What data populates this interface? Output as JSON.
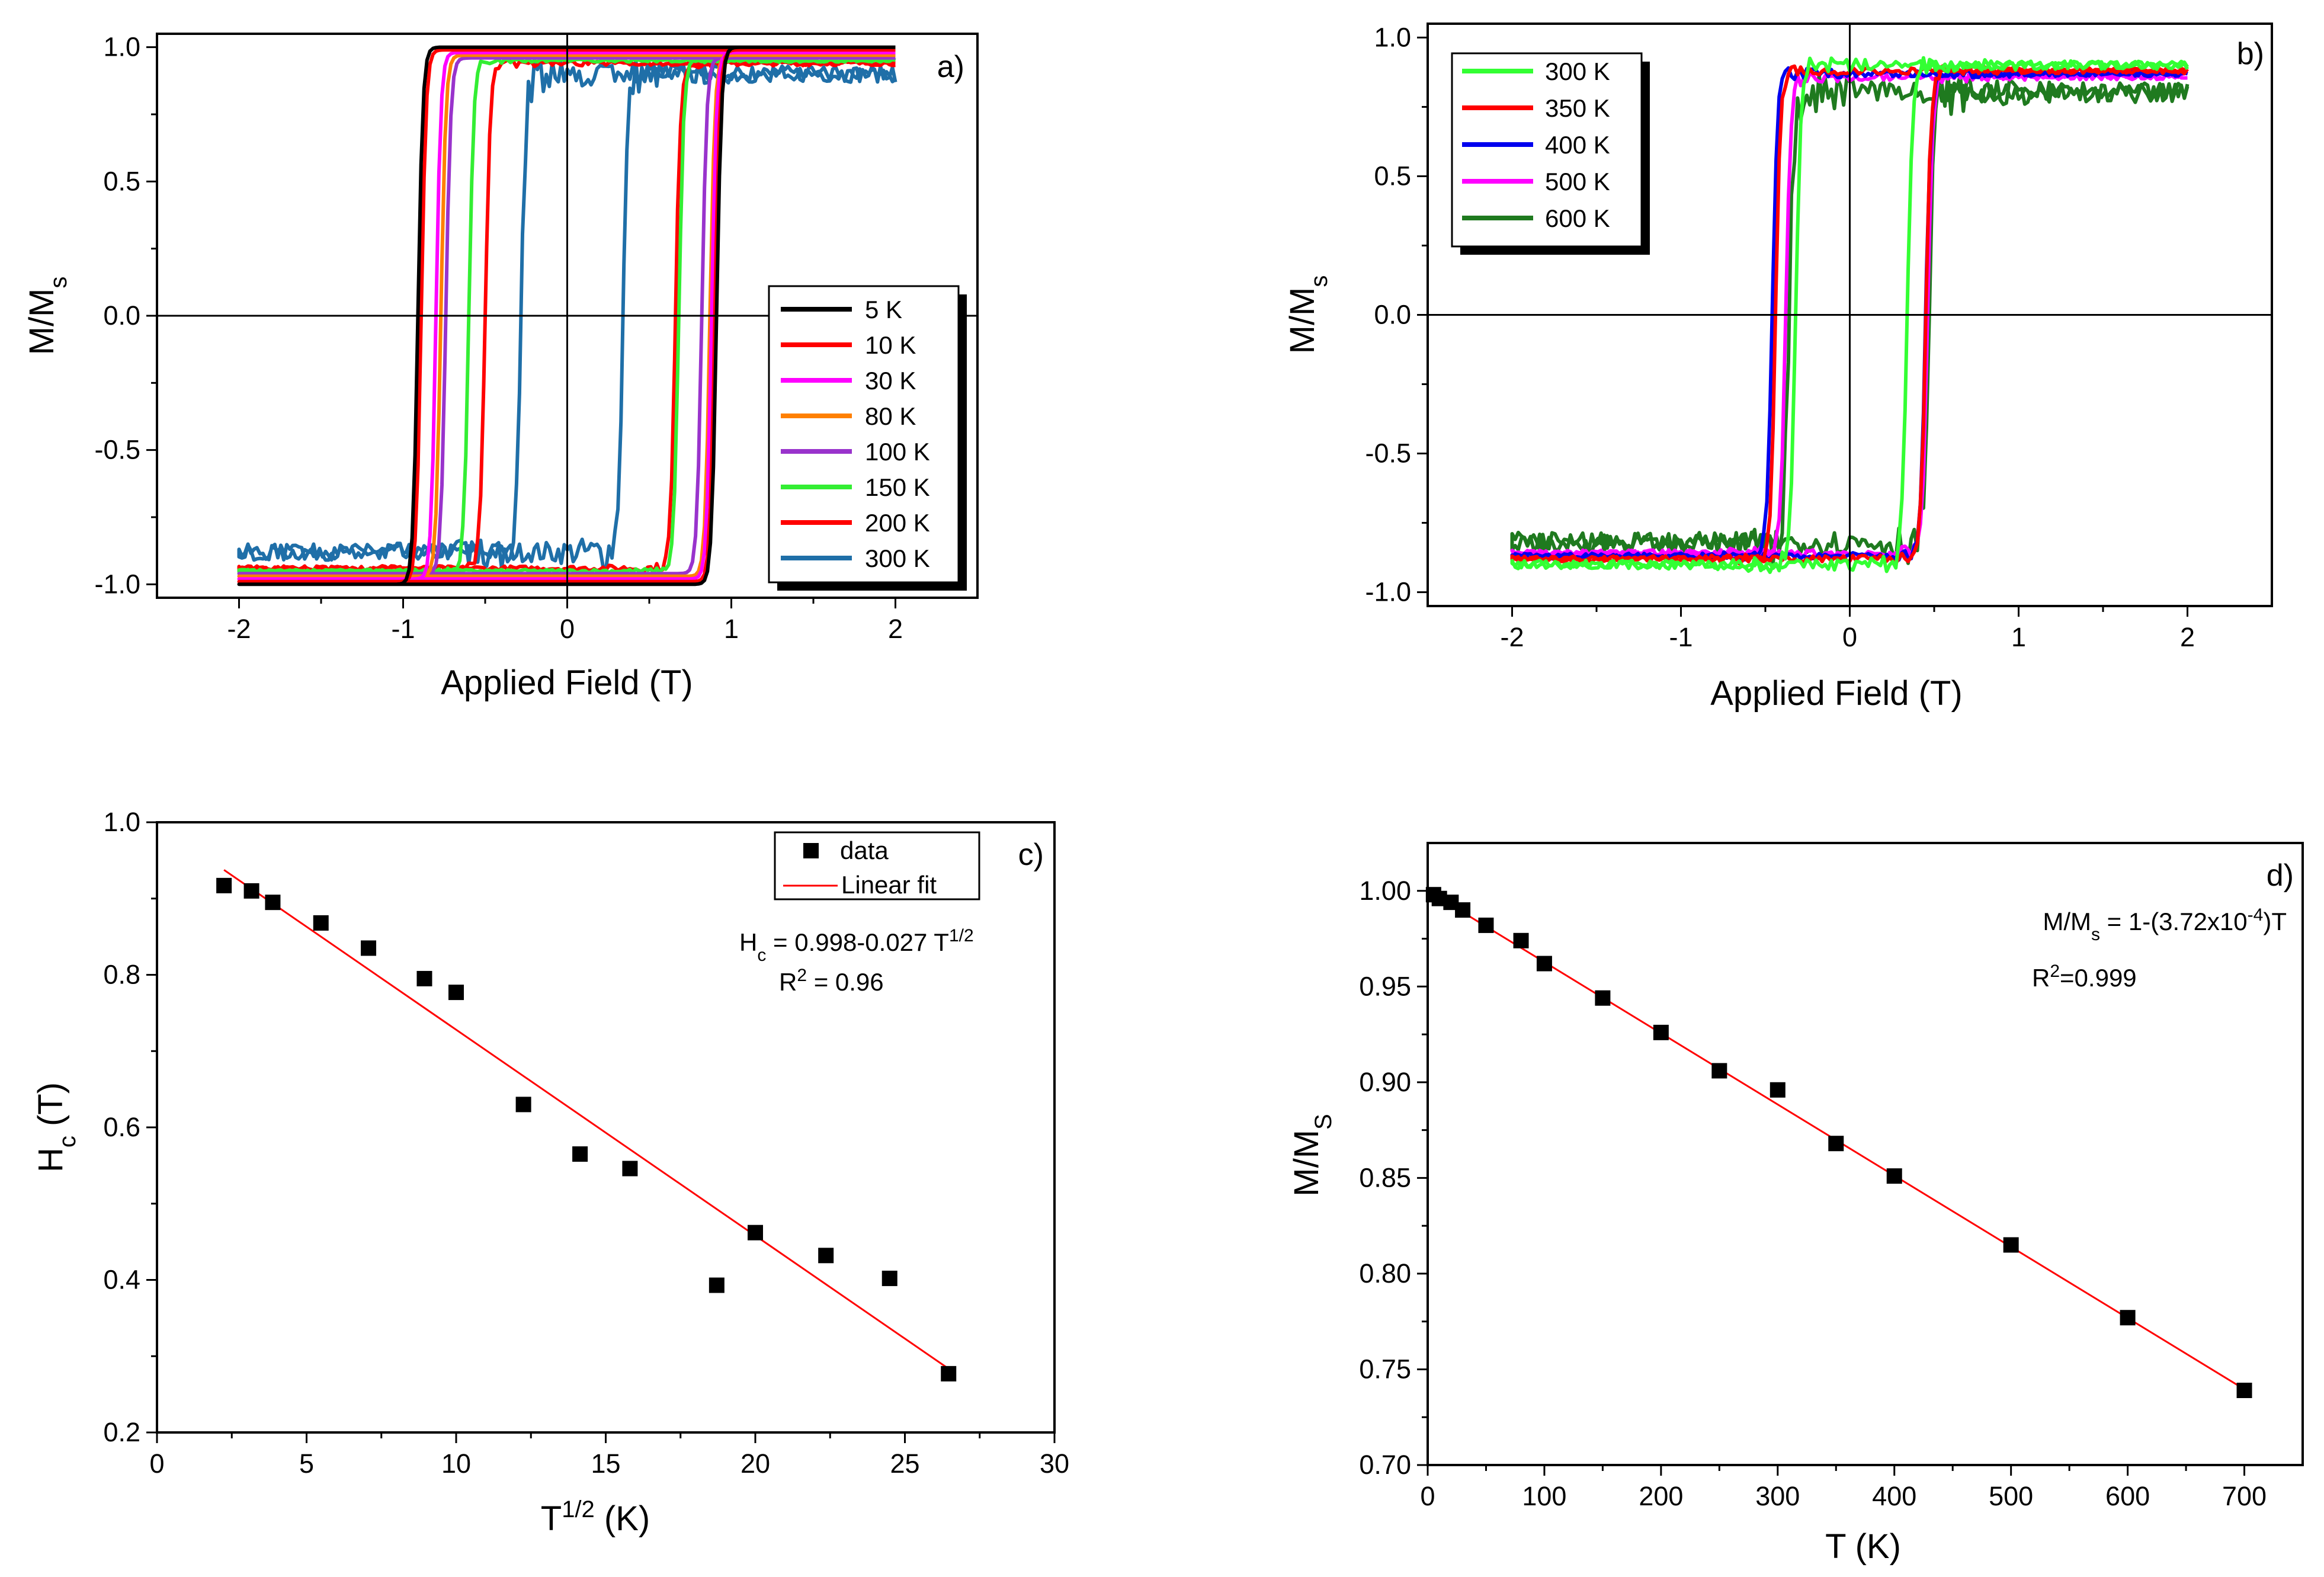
{
  "figure": "Four-panel magnetic characterization figure",
  "chart_data": [
    {
      "id": "a",
      "type": "line",
      "panel_label": "a)",
      "xlabel": "Applied Field (T)",
      "ylabel_main": "M/M",
      "ylabel_sub": "s",
      "xlim": [
        -2.5,
        2.5
      ],
      "ylim": [
        -1.05,
        1.05
      ],
      "xticks": [
        -2,
        -1,
        0,
        1,
        2
      ],
      "yticks": [
        -1.0,
        -0.5,
        0.0,
        0.5,
        1.0
      ],
      "xtick_labels": [
        "-2",
        "-1",
        "0",
        "1",
        "2"
      ],
      "ytick_labels": [
        "-1.0",
        "-0.5",
        "0.0",
        "0.5",
        "1.0"
      ],
      "legend_position": "lower-right",
      "series": [
        {
          "name": "5 K",
          "color": "#000000",
          "coercive_down": -0.91,
          "coercive_up": 0.91,
          "sat_top": 1.0,
          "sat_bottom": -1.0,
          "noise": 0.0
        },
        {
          "name": "10 K",
          "color": "#ff0000",
          "coercive_down": -0.89,
          "coercive_up": 0.9,
          "sat_top": 0.99,
          "sat_bottom": -0.99,
          "noise": 0.0
        },
        {
          "name": "30 K",
          "color": "#ff00ff",
          "coercive_down": -0.8,
          "coercive_up": 0.88,
          "sat_top": 0.98,
          "sat_bottom": -0.98,
          "noise": 0.0
        },
        {
          "name": "80 K",
          "color": "#ff8000",
          "coercive_down": -0.77,
          "coercive_up": 0.87,
          "sat_top": 0.97,
          "sat_bottom": -0.97,
          "noise": 0.0
        },
        {
          "name": "100 K",
          "color": "#9933cc",
          "coercive_down": -0.74,
          "coercive_up": 0.82,
          "sat_top": 0.96,
          "sat_bottom": -0.96,
          "noise": 0.0
        },
        {
          "name": "150 K",
          "color": "#33ee33",
          "coercive_down": -0.6,
          "coercive_up": 0.68,
          "sat_top": 0.95,
          "sat_bottom": -0.95,
          "noise": 0.005
        },
        {
          "name": "200 K",
          "color": "#ff0000",
          "coercive_down": -0.5,
          "coercive_up": 0.66,
          "sat_top": 0.94,
          "sat_bottom": -0.94,
          "noise": 0.008
        },
        {
          "name": "300 K",
          "color": "#1f6fa8",
          "coercive_down": -0.28,
          "coercive_up": 0.34,
          "sat_top": 0.9,
          "sat_bottom": -0.88,
          "noise": 0.03
        }
      ]
    },
    {
      "id": "b",
      "type": "line",
      "panel_label": "b)",
      "xlabel": "Applied Field (T)",
      "ylabel_main": "M/M",
      "ylabel_sub": "s",
      "xlim": [
        -2.5,
        2.5
      ],
      "ylim": [
        -1.05,
        1.05
      ],
      "xticks": [
        -2,
        -1,
        0,
        1,
        2
      ],
      "yticks": [
        -1.0,
        -0.5,
        0.0,
        0.5,
        1.0
      ],
      "xtick_labels": [
        "-2",
        "-1",
        "0",
        "1",
        "2"
      ],
      "ytick_labels": [
        "-1.0",
        "-0.5",
        "0.0",
        "0.5",
        "1.0"
      ],
      "legend_position": "top-left",
      "series": [
        {
          "name": "300 K",
          "color": "#33ff33",
          "coercive_down": -0.32,
          "coercive_up": 0.34,
          "sat_top": 0.9,
          "sat_bottom": -0.9,
          "noise": 0.015
        },
        {
          "name": "350 K",
          "color": "#ff0000",
          "coercive_down": -0.44,
          "coercive_up": 0.45,
          "sat_top": 0.88,
          "sat_bottom": -0.88,
          "noise": 0.01
        },
        {
          "name": "400 K",
          "color": "#0000ee",
          "coercive_down": -0.46,
          "coercive_up": 0.45,
          "sat_top": 0.87,
          "sat_bottom": -0.87,
          "noise": 0.01
        },
        {
          "name": "500 K",
          "color": "#ff00ff",
          "coercive_down": -0.38,
          "coercive_up": 0.46,
          "sat_top": 0.86,
          "sat_bottom": -0.86,
          "noise": 0.012
        },
        {
          "name": "600 K",
          "color": "#1f7a1f",
          "coercive_down": -0.36,
          "coercive_up": 0.47,
          "sat_top": 0.8,
          "sat_bottom": -0.82,
          "noise": 0.035
        }
      ]
    },
    {
      "id": "c",
      "type": "scatter",
      "panel_label": "c)",
      "xlabel_main": "T",
      "xlabel_sup": "1/2",
      "xlabel_tail": " (K)",
      "ylabel_main": "H",
      "ylabel_sub": "c",
      "ylabel_tail": " (T)",
      "xlim": [
        0,
        30
      ],
      "ylim": [
        0.2,
        1.0
      ],
      "xticks": [
        0,
        5,
        10,
        15,
        20,
        25,
        30
      ],
      "yticks": [
        0.2,
        0.4,
        0.6,
        0.8,
        1.0
      ],
      "xtick_labels": [
        "0",
        "5",
        "10",
        "15",
        "20",
        "25",
        "30"
      ],
      "ytick_labels": [
        "0.2",
        "0.4",
        "0.6",
        "0.8",
        "1.0"
      ],
      "legend_position": "top-right",
      "legend": [
        "data",
        "Linear fit"
      ],
      "x": [
        2.24,
        3.16,
        3.87,
        5.48,
        7.07,
        8.94,
        10.0,
        12.25,
        14.14,
        15.81,
        18.71,
        20.0,
        22.36,
        24.49,
        26.46
      ],
      "y": [
        0.917,
        0.91,
        0.895,
        0.868,
        0.835,
        0.795,
        0.777,
        0.63,
        0.565,
        0.546,
        0.393,
        0.462,
        0.432,
        0.402,
        0.277
      ],
      "fit": {
        "intercept": 0.998,
        "slope": -0.027,
        "x_range": [
          2.24,
          26.46
        ],
        "color": "#ff0000"
      },
      "eq_main": "H",
      "eq_sub": "c",
      "eq_text": " = 0.998-0.027 T",
      "eq_sup": "1/2",
      "r2_main": "R",
      "r2_sup": "2",
      "r2_value": " = 0.96"
    },
    {
      "id": "d",
      "type": "scatter",
      "panel_label": "d)",
      "xlabel": "T (K)",
      "ylabel_main": "M/M",
      "ylabel_sub": "S",
      "xlim": [
        0,
        750
      ],
      "ylim": [
        0.7,
        1.025
      ],
      "xticks": [
        0,
        100,
        200,
        300,
        400,
        500,
        600,
        700
      ],
      "yticks": [
        0.7,
        0.75,
        0.8,
        0.85,
        0.9,
        0.95,
        1.0
      ],
      "xtick_labels": [
        "0",
        "100",
        "200",
        "300",
        "400",
        "500",
        "600",
        "700"
      ],
      "ytick_labels": [
        "0.70",
        "0.75",
        "0.80",
        "0.85",
        "0.90",
        "0.95",
        "1.00"
      ],
      "x": [
        5,
        10,
        20,
        30,
        50,
        80,
        100,
        150,
        200,
        250,
        300,
        350,
        400,
        500,
        600,
        700
      ],
      "y": [
        0.998,
        0.996,
        0.994,
        0.99,
        0.982,
        0.974,
        0.962,
        0.944,
        0.926,
        0.906,
        0.896,
        0.868,
        0.851,
        0.815,
        0.777,
        0.739
      ],
      "fit": {
        "intercept": 1.0,
        "slope": -0.000372,
        "x_range": [
          0,
          700
        ],
        "color": "#ff0000"
      },
      "eq_prefix": "M/M",
      "eq_sub": "s",
      "eq_mid": " = 1-(3.72x10",
      "eq_sup": "-4",
      "eq_suffix": ")T",
      "r2_main": "R",
      "r2_sup": "2",
      "r2_value": "=0.999"
    }
  ]
}
